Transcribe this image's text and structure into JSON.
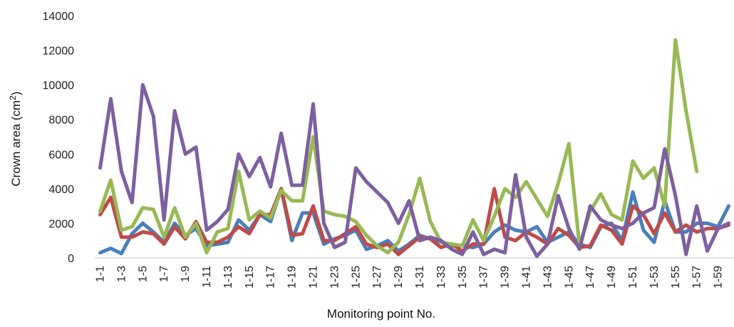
{
  "chart_data": {
    "type": "line",
    "ylabel": "Crown area (cm",
    "ylabel_sup": "2",
    "ylabel_close": ")",
    "xlabel": "Monitoring point No.",
    "ylim": [
      0,
      14000
    ],
    "yticks": [
      0,
      2000,
      4000,
      6000,
      8000,
      10000,
      12000,
      14000
    ],
    "ytick_labels": [
      "0",
      "2000",
      "4000",
      "6000",
      "8000",
      "10000",
      "12000",
      "14000"
    ],
    "grid": false,
    "legend": "none",
    "categories": [
      "1-1",
      "1-2",
      "1-3",
      "1-4",
      "1-5",
      "1-6",
      "1-7",
      "1-8",
      "1-9",
      "1-10",
      "1-11",
      "1-12",
      "1-13",
      "1-14",
      "1-15",
      "1-16",
      "1-17",
      "1-18",
      "1-19",
      "1-20",
      "1-21",
      "1-22",
      "1-23",
      "1-24",
      "1-25",
      "1-26",
      "1-27",
      "1-28",
      "1-29",
      "1-30",
      "1-31",
      "1-32",
      "1-33",
      "1-34",
      "1-35",
      "1-36",
      "1-37",
      "1-38",
      "1-39",
      "1-40",
      "1-41",
      "1-42",
      "1-43",
      "1-44",
      "1-45",
      "1-46",
      "1-47",
      "1-48",
      "1-49",
      "1-50",
      "1-51",
      "1-52",
      "1-53",
      "1-54",
      "1-55",
      "1-56",
      "1-57",
      "1-58",
      "1-59",
      "1-60"
    ],
    "tick_labels": [
      "1-1",
      "1-3",
      "1-5",
      "1-7",
      "1-9",
      "1-11",
      "1-13",
      "1-15",
      "1-17",
      "1-19",
      "1-21",
      "1-23",
      "1-25",
      "1-27",
      "1-29",
      "1-31",
      "1-33",
      "1-35",
      "1-37",
      "1-39",
      "1-41",
      "1-43",
      "1-45",
      "1-47",
      "1-49",
      "1-51",
      "1-53",
      "1-55",
      "1-57",
      "1-59"
    ],
    "series": [
      {
        "color": "#4a7ebb",
        "values": [
          300,
          550,
          250,
          1400,
          2000,
          1500,
          900,
          2000,
          1300,
          1700,
          700,
          800,
          900,
          2200,
          1600,
          2500,
          2100,
          4000,
          1000,
          2600,
          2600,
          800,
          1100,
          1300,
          1600,
          500,
          700,
          1000,
          400,
          800,
          1300,
          1100,
          900,
          700,
          700,
          600,
          800,
          1500,
          1900,
          1600,
          1500,
          1800,
          900,
          1200,
          1500,
          800,
          600,
          1800,
          2000,
          1000,
          3800,
          1600,
          900,
          3300,
          1500,
          1500,
          2000,
          2000,
          1800,
          3000
        ]
      },
      {
        "color": "#be4b48",
        "values": [
          2500,
          3500,
          1200,
          1200,
          1500,
          1400,
          800,
          1800,
          1100,
          2100,
          900,
          900,
          1200,
          1800,
          1400,
          2500,
          2500,
          4000,
          1300,
          1400,
          3000,
          1000,
          1000,
          1400,
          1800,
          800,
          600,
          800,
          200,
          700,
          1200,
          1100,
          600,
          800,
          400,
          800,
          800,
          4000,
          1200,
          1000,
          1500,
          1200,
          800,
          1700,
          1300,
          600,
          700,
          1900,
          1600,
          800,
          3000,
          2500,
          1400,
          2600,
          1500,
          1900,
          1500,
          1700,
          1700,
          1900
        ]
      },
      {
        "color": "#98b954",
        "values": [
          2700,
          4500,
          1600,
          1800,
          2900,
          2800,
          1200,
          2900,
          1200,
          2000,
          300,
          1500,
          1700,
          5000,
          2200,
          2700,
          2300,
          3900,
          3300,
          3300,
          7000,
          2700,
          2500,
          2400,
          2100,
          1300,
          700,
          300,
          900,
          2500,
          4600,
          2100,
          900,
          800,
          700,
          2200,
          1000,
          2400,
          4000,
          3500,
          4400,
          3400,
          2400,
          4300,
          6600,
          700,
          2700,
          3700,
          2500,
          2200,
          5600,
          4600,
          5200,
          3000,
          12600,
          8500,
          5000,
          null,
          null,
          null
        ]
      },
      {
        "color": "#7d60a0",
        "values": [
          5200,
          9200,
          5000,
          3200,
          10000,
          8200,
          2200,
          8500,
          6000,
          6400,
          1600,
          2100,
          2800,
          6000,
          4700,
          5800,
          4100,
          7200,
          4200,
          4200,
          8900,
          2000,
          600,
          900,
          5200,
          4400,
          3800,
          3200,
          2000,
          3300,
          1000,
          1200,
          1000,
          500,
          200,
          1500,
          200,
          500,
          300,
          4800,
          1200,
          100,
          800,
          3600,
          1700,
          500,
          3000,
          2200,
          1900,
          1700,
          2000,
          2600,
          2900,
          6300,
          3600,
          200,
          3000,
          400,
          1700,
          2000
        ]
      }
    ]
  }
}
